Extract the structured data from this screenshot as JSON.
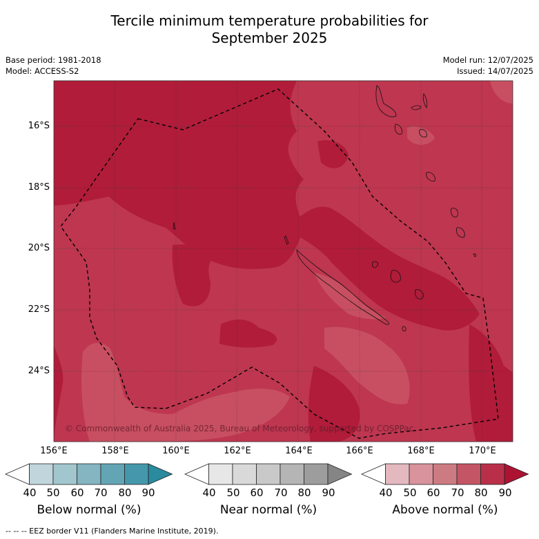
{
  "title": {
    "line1": "Tercile minimum temperature probabilities for",
    "line2": "September 2025"
  },
  "meta": {
    "base_period": "Base period: 1981-2018",
    "model": "Model: ACCESS-S2",
    "model_run": "Model run: 12/07/2025",
    "issued": "Issued: 14/07/2025"
  },
  "map": {
    "latitudes": [
      "16°S",
      "18°S",
      "20°S",
      "22°S",
      "24°S"
    ],
    "longitudes": [
      "156°E",
      "158°E",
      "160°E",
      "162°E",
      "164°E",
      "166°E",
      "168°E",
      "170°E"
    ],
    "copyright": "© Commonwealth of Australia 2025, Bureau of Meteorology, supported by COSPPac",
    "colors": {
      "above_80_90": "#b01c3a",
      "above_70_80": "#be3650",
      "above_60_70": "#c74f61"
    }
  },
  "colorbars": {
    "ticks": [
      "40",
      "50",
      "60",
      "70",
      "80",
      "90"
    ],
    "below": {
      "label": "Below normal (%)",
      "colors": [
        "#ffffff",
        "#c0d5dc",
        "#a2c6cd",
        "#84b5c1",
        "#63a5b4",
        "#4598ab",
        "#2a8a9e"
      ]
    },
    "near": {
      "label": "Near normal (%)",
      "colors": [
        "#ffffff",
        "#e7e7e7",
        "#d9d9d9",
        "#c9c9c9",
        "#b5b5b5",
        "#9d9d9d",
        "#858585"
      ]
    },
    "above": {
      "label": "Above normal (%)",
      "colors": [
        "#ffffff",
        "#e3b8bf",
        "#d8939c",
        "#cd7b82",
        "#c45565",
        "#b92f49",
        "#ac1332"
      ]
    }
  },
  "footnote": "--  --  -- EEZ border V11 (Flanders Marine Institute, 2019)."
}
